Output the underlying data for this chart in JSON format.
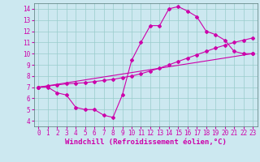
{
  "xlabel": "Windchill (Refroidissement éolien,°C)",
  "background_color": "#cce8f0",
  "line_color": "#cc00aa",
  "grid_color": "#99cccc",
  "xlim": [
    -0.5,
    23.5
  ],
  "ylim": [
    3.5,
    14.5
  ],
  "xticks": [
    0,
    1,
    2,
    3,
    4,
    5,
    6,
    7,
    8,
    9,
    10,
    11,
    12,
    13,
    14,
    15,
    16,
    17,
    18,
    19,
    20,
    21,
    22,
    23
  ],
  "yticks": [
    4,
    5,
    6,
    7,
    8,
    9,
    10,
    11,
    12,
    13,
    14
  ],
  "curve1_x": [
    0,
    1,
    2,
    3,
    4,
    5,
    6,
    7,
    8,
    9,
    10,
    11,
    12,
    13,
    14,
    15,
    16,
    17,
    18,
    19,
    20,
    21,
    22,
    23
  ],
  "curve1_y": [
    7.0,
    7.0,
    6.5,
    6.3,
    5.2,
    5.0,
    5.0,
    4.5,
    4.3,
    6.3,
    9.4,
    11.0,
    12.5,
    12.5,
    14.0,
    14.2,
    13.8,
    13.3,
    12.0,
    11.7,
    11.2,
    10.2,
    10.0,
    10.0
  ],
  "curve2_x": [
    0,
    1,
    2,
    3,
    4,
    5,
    6,
    7,
    8,
    9,
    10,
    11,
    12,
    13,
    14,
    15,
    16,
    17,
    18,
    19,
    20,
    21,
    22,
    23
  ],
  "curve2_y": [
    7.0,
    7.1,
    7.2,
    7.3,
    7.35,
    7.4,
    7.5,
    7.6,
    7.7,
    7.85,
    8.0,
    8.2,
    8.45,
    8.7,
    9.0,
    9.3,
    9.6,
    9.9,
    10.2,
    10.5,
    10.75,
    11.0,
    11.2,
    11.4
  ],
  "curve3_x": [
    0,
    23
  ],
  "curve3_y": [
    7.0,
    10.0
  ],
  "marker": "D",
  "markersize": 2.0,
  "linewidth": 0.8,
  "xlabel_fontsize": 6.5,
  "tick_fontsize": 5.5
}
